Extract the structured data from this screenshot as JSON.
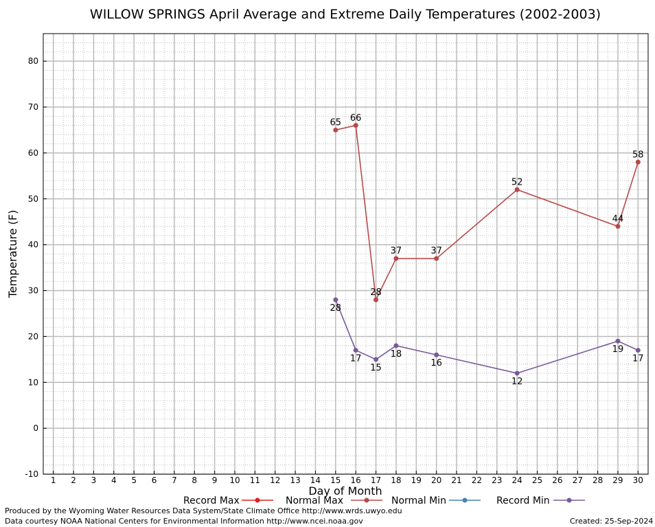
{
  "chart_data": {
    "type": "line",
    "title": "WILLOW SPRINGS April Average and Extreme Daily Temperatures (2002-2003)",
    "xlabel": "Day of Month",
    "ylabel": "Temperature (F)",
    "xlim": [
      0.5,
      30.5
    ],
    "ylim": [
      -10,
      86
    ],
    "x_ticks": [
      1,
      2,
      3,
      4,
      5,
      6,
      7,
      8,
      9,
      10,
      11,
      12,
      13,
      14,
      15,
      16,
      17,
      18,
      19,
      20,
      21,
      22,
      23,
      24,
      25,
      26,
      27,
      28,
      29,
      30
    ],
    "y_ticks": [
      -10,
      0,
      10,
      20,
      30,
      40,
      50,
      60,
      70,
      80
    ],
    "grid": true,
    "legend_position": "bottom",
    "series": [
      {
        "name": "Record Max",
        "color": "#dd2222",
        "x": [],
        "y": []
      },
      {
        "name": "Normal Max",
        "color": "#b84848",
        "x": [
          15,
          16,
          17,
          18,
          20,
          24,
          29,
          30
        ],
        "y": [
          65,
          66,
          28,
          37,
          37,
          52,
          44,
          58
        ]
      },
      {
        "name": "Normal Min",
        "color": "#4682b4",
        "x": [],
        "y": []
      },
      {
        "name": "Record Min",
        "color": "#7a5a9a",
        "x": [
          15,
          16,
          17,
          18,
          20,
          24,
          29,
          30
        ],
        "y": [
          28,
          17,
          15,
          18,
          16,
          12,
          19,
          17
        ]
      }
    ]
  },
  "footer": {
    "produced_by": "Produced by the Wyoming Water Resources Data System/State Climate Office http://www.wrds.uwyo.edu",
    "courtesy": "Data courtesy NOAA National Centers for Environmental Information http://www.ncei.noaa.gov",
    "created": "Created:  25-Sep-2024"
  }
}
